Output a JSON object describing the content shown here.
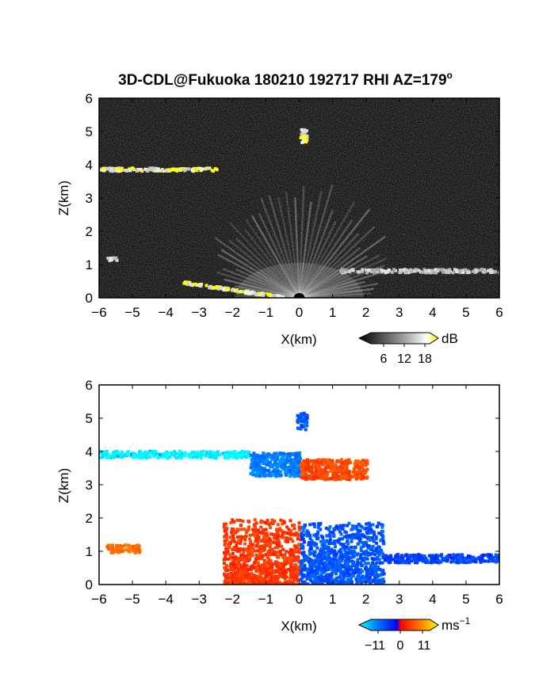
{
  "title": "3D-CDL@Fukuoka 180210 192717 RHI AZ=179",
  "title_degree_mark": "o",
  "chart_data": [
    {
      "type": "heatmap",
      "quantity": "echo intensity",
      "xlabel": "X(km)",
      "ylabel": "Z(km)",
      "xlim": [
        -6,
        6
      ],
      "ylim": [
        0,
        6
      ],
      "x_ticks": [
        "−6",
        "−5",
        "−4",
        "−3",
        "−2",
        "−1",
        "0",
        "1",
        "2",
        "3",
        "4",
        "5",
        "6"
      ],
      "y_ticks": [
        "0",
        "1",
        "2",
        "3",
        "4",
        "5",
        "6"
      ],
      "background": "#101010",
      "colorbar": {
        "unit": "dB",
        "ticks": [
          "6",
          "12",
          "18"
        ],
        "colors": [
          "#000000",
          "#444444",
          "#888888",
          "#cccccc",
          "#ffffff",
          "#ffff00"
        ]
      },
      "features": [
        {
          "name": "ground clutter fan",
          "origin_x": 0,
          "origin_z": 0,
          "max_range_km": 3.5
        },
        {
          "name": "cloud layer",
          "x": [
            -6.0,
            -2.5
          ],
          "z": [
            3.9,
            3.95
          ],
          "value_db": 18
        },
        {
          "name": "isolated echo",
          "x": [
            0.0,
            0.2
          ],
          "z": [
            4.7,
            5.1
          ],
          "value_db": 18
        },
        {
          "name": "low cloud",
          "x": [
            1.2,
            6.0
          ],
          "z": [
            0.8,
            0.9
          ],
          "value_db": 15
        },
        {
          "name": "low cloud",
          "x": [
            -5.8,
            -5.5
          ],
          "z": [
            1.15,
            1.25
          ],
          "value_db": 16
        },
        {
          "name": "terrain edge",
          "x": [
            -3.5,
            -0.5
          ],
          "z": [
            0.5,
            0.05
          ],
          "value_db": 18
        }
      ]
    },
    {
      "type": "heatmap",
      "quantity": "Doppler velocity",
      "xlabel": "X(km)",
      "ylabel": "Z(km)",
      "xlim": [
        -6,
        6
      ],
      "ylim": [
        0,
        6
      ],
      "x_ticks": [
        "−6",
        "−5",
        "−4",
        "−3",
        "−2",
        "−1",
        "0",
        "1",
        "2",
        "3",
        "4",
        "5",
        "6"
      ],
      "y_ticks": [
        "0",
        "1",
        "2",
        "3",
        "4",
        "5",
        "6"
      ],
      "background": "#ffffff",
      "colorbar": {
        "unit": "ms",
        "unit_exponent": "−1",
        "ticks": [
          "−11",
          "0",
          "11"
        ],
        "colors": [
          "#00ffff",
          "#0080ff",
          "#0000ff",
          "#ff0000",
          "#ff8000",
          "#ffff00"
        ]
      },
      "features": [
        {
          "name": "cloud layer",
          "x": [
            -6.0,
            -1.5
          ],
          "z": [
            3.85,
            4.05
          ],
          "velocity": -9
        },
        {
          "name": "cloud layer",
          "x": [
            -1.5,
            0.0
          ],
          "z": [
            3.3,
            4.0
          ],
          "velocity": -6
        },
        {
          "name": "cloud layer",
          "x": [
            0.0,
            2.0
          ],
          "z": [
            3.2,
            3.8
          ],
          "velocity": 4
        },
        {
          "name": "isolated echo",
          "x": [
            -0.1,
            0.2
          ],
          "z": [
            4.7,
            5.2
          ],
          "velocity": -4
        },
        {
          "name": "low-level approaching flow",
          "x": [
            -2.3,
            0.0
          ],
          "z": [
            0.0,
            2.0
          ],
          "velocity": 3
        },
        {
          "name": "low-level receding flow",
          "x": [
            0.0,
            2.5
          ],
          "z": [
            0.0,
            1.9
          ],
          "velocity": -4
        },
        {
          "name": "low cloud",
          "x": [
            2.5,
            6.0
          ],
          "z": [
            0.7,
            0.95
          ],
          "velocity": -3
        },
        {
          "name": "low cloud",
          "x": [
            -5.8,
            -4.8
          ],
          "z": [
            1.0,
            1.25
          ],
          "velocity": 6
        }
      ]
    }
  ]
}
